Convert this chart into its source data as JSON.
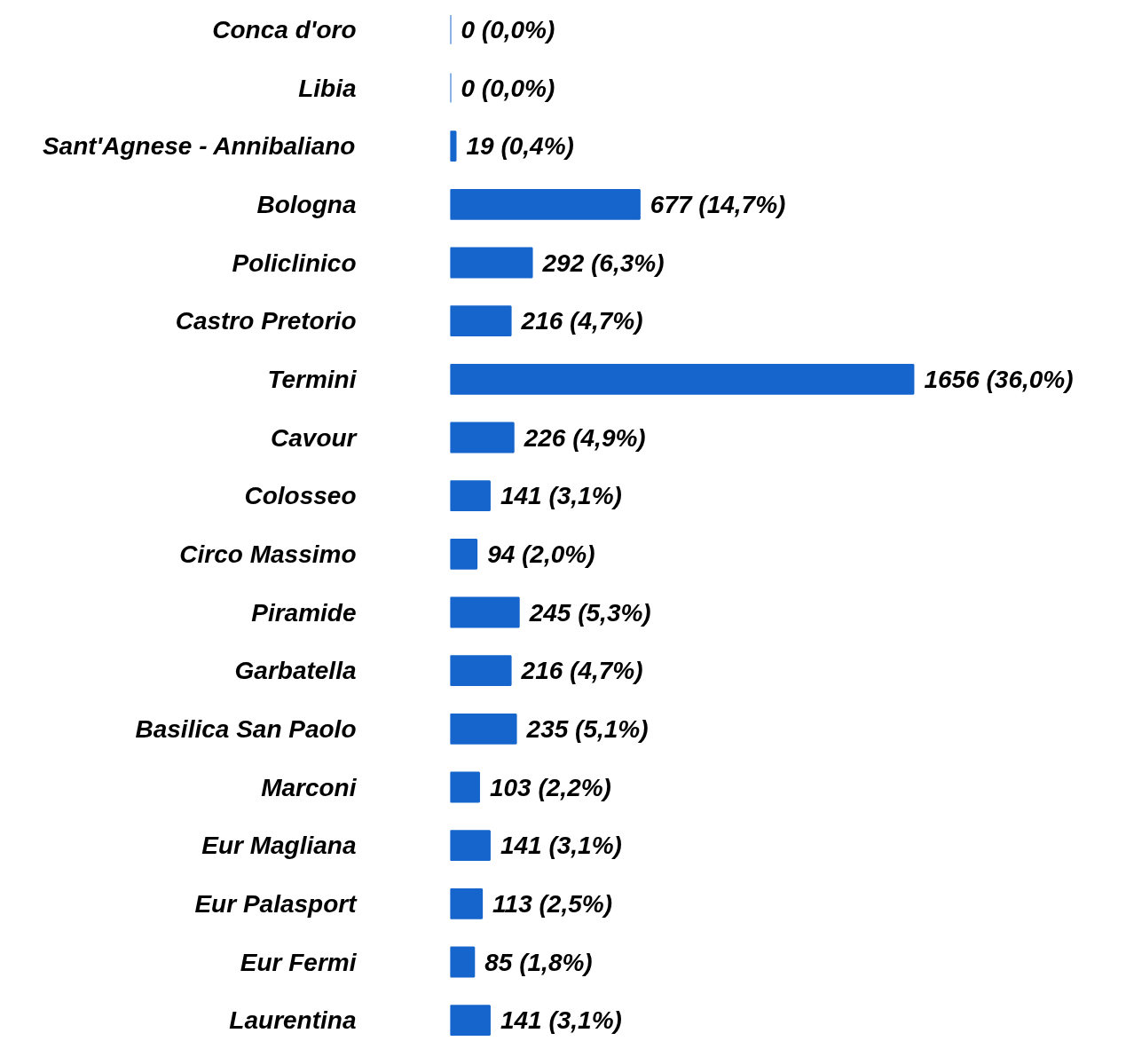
{
  "chart_data": {
    "type": "bar",
    "orientation": "horizontal",
    "color": "#1565cc",
    "categories": [
      "Conca d'oro",
      "Libia",
      "Sant'Agnese - Annibaliano",
      "Bologna",
      "Policlinico",
      "Castro Pretorio",
      "Termini",
      "Cavour",
      "Colosseo",
      "Circo Massimo",
      "Piramide",
      "Garbatella",
      "Basilica San Paolo",
      "Marconi",
      "Eur Magliana",
      "Eur Palasport",
      "Eur Fermi",
      "Laurentina"
    ],
    "values": [
      0,
      0,
      19,
      677,
      292,
      216,
      1656,
      226,
      141,
      94,
      245,
      216,
      235,
      103,
      141,
      113,
      85,
      141
    ],
    "value_labels": [
      "0  (0,0%)",
      "0  (0,0%)",
      "19  (0,4%)",
      "677  (14,7%)",
      "292  (6,3%)",
      "216  (4,7%)",
      "1656  (36,0%)",
      "226  (4,9%)",
      "141  (3,1%)",
      "94  (2,0%)",
      "245  (5,3%)",
      "216  (4,7%)",
      "235  (5,1%)",
      "103  (2,2%)",
      "141  (3,1%)",
      "113  (2,5%)",
      "85  (1,8%)",
      "141  (3,1%)"
    ]
  }
}
